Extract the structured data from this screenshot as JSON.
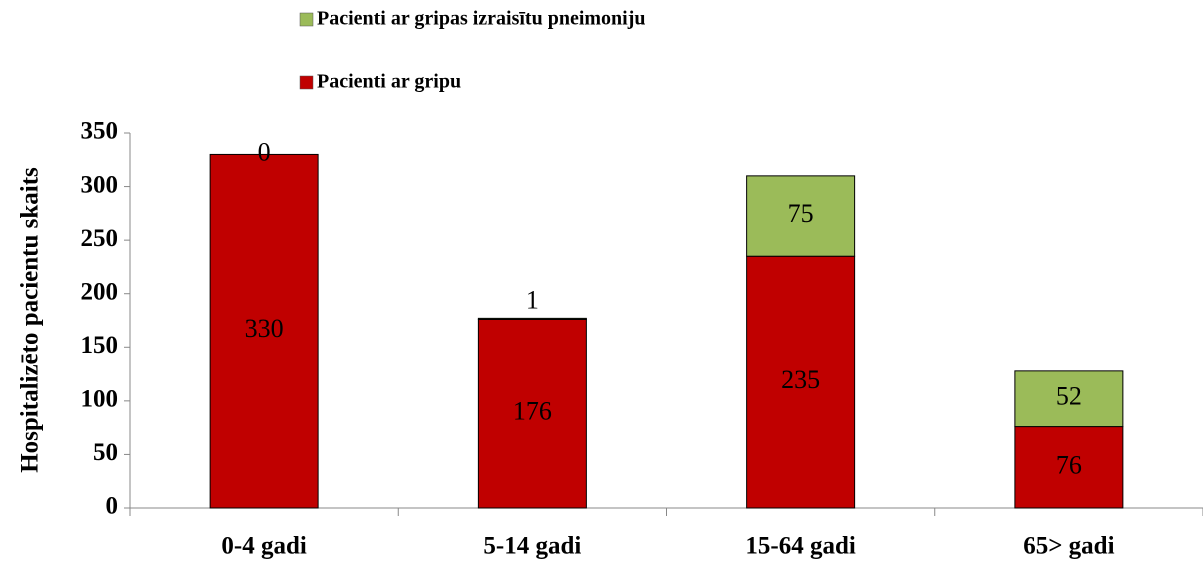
{
  "chart_data": {
    "type": "stacked_bar",
    "ylabel": "Hospitalizēto pacientu skaits",
    "categories": [
      "0-4 gadi",
      "5-14 gadi",
      "15-64 gadi",
      "65> gadi"
    ],
    "series": [
      {
        "name": "Pacienti ar gripu",
        "color": "#c00000",
        "values": [
          330,
          176,
          235,
          76
        ]
      },
      {
        "name": "Pacienti ar gripas izraisītu pneimoniju",
        "color": "#9bbb59",
        "values": [
          0,
          1,
          75,
          52
        ]
      }
    ],
    "ylim": [
      0,
      350
    ],
    "yticks": [
      0,
      50,
      100,
      150,
      200,
      250,
      300,
      350
    ],
    "grid": false
  }
}
